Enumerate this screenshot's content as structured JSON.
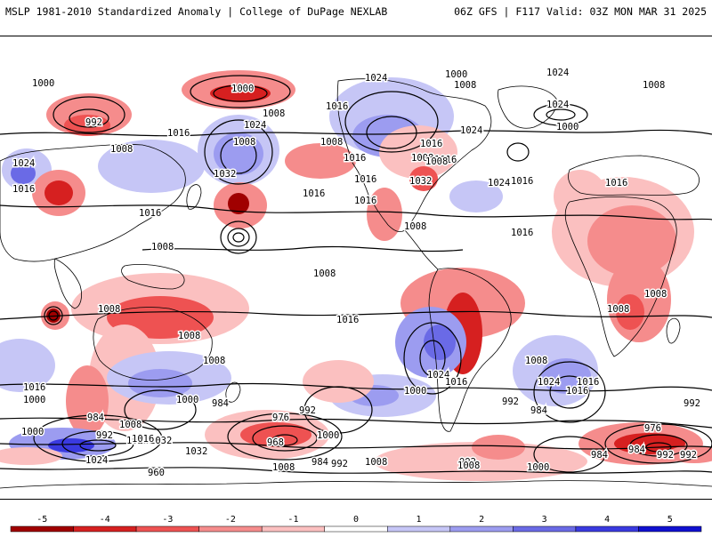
{
  "header": {
    "left_title": "MSLP 1981-2010 Standardized Anomaly | College of DuPage NEXLAB",
    "right_title": "06Z GFS | F117 Valid: 03Z MON MAR 31 2025"
  },
  "colors": {
    "neg5": "#a00000",
    "neg4": "#d62020",
    "neg3": "#ee5252",
    "neg2": "#f58c8c",
    "neg1": "#fbc0c0",
    "zero": "#ffffff",
    "pos1": "#c6c6f6",
    "pos2": "#9c9cf0",
    "pos3": "#6a6ae6",
    "pos4": "#3a3ae0",
    "pos5": "#1010d0",
    "contour": "#000000",
    "coast": "#000000"
  },
  "colorbar": {
    "ticks": [
      "-5",
      "-4",
      "-3",
      "-2",
      "-1",
      "0",
      "1",
      "2",
      "3",
      "4",
      "5"
    ]
  },
  "contour_labels": [
    "1000",
    "992",
    "1000",
    "1008",
    "1008",
    "1024",
    "1016",
    "1024",
    "1008",
    "1032",
    "1016",
    "1024",
    "1008",
    "1016",
    "1008",
    "1032",
    "1024",
    "1016",
    "1016",
    "1008",
    "1016",
    "1016",
    "1016",
    "1000",
    "1008",
    "1024",
    "1024",
    "1008",
    "1016",
    "1024",
    "1000",
    "1016",
    "1008",
    "1008",
    "1016",
    "1016",
    "1008",
    "1008",
    "1008",
    "1008",
    "1008",
    "1016",
    "1016",
    "1000",
    "1016",
    "1000",
    "1008",
    "1024",
    "1016",
    "1024",
    "1016",
    "1016",
    "1008",
    "1000",
    "992",
    "984",
    "992",
    "984",
    "1000",
    "984",
    "976",
    "992",
    "1008",
    "992",
    "1024",
    "1032",
    "960",
    "968",
    "1000",
    "1032",
    "1024",
    "1016",
    "1008",
    "984",
    "992",
    "1008",
    "992",
    "1008",
    "1000",
    "984",
    "976",
    "992",
    "984",
    "992"
  ]
}
